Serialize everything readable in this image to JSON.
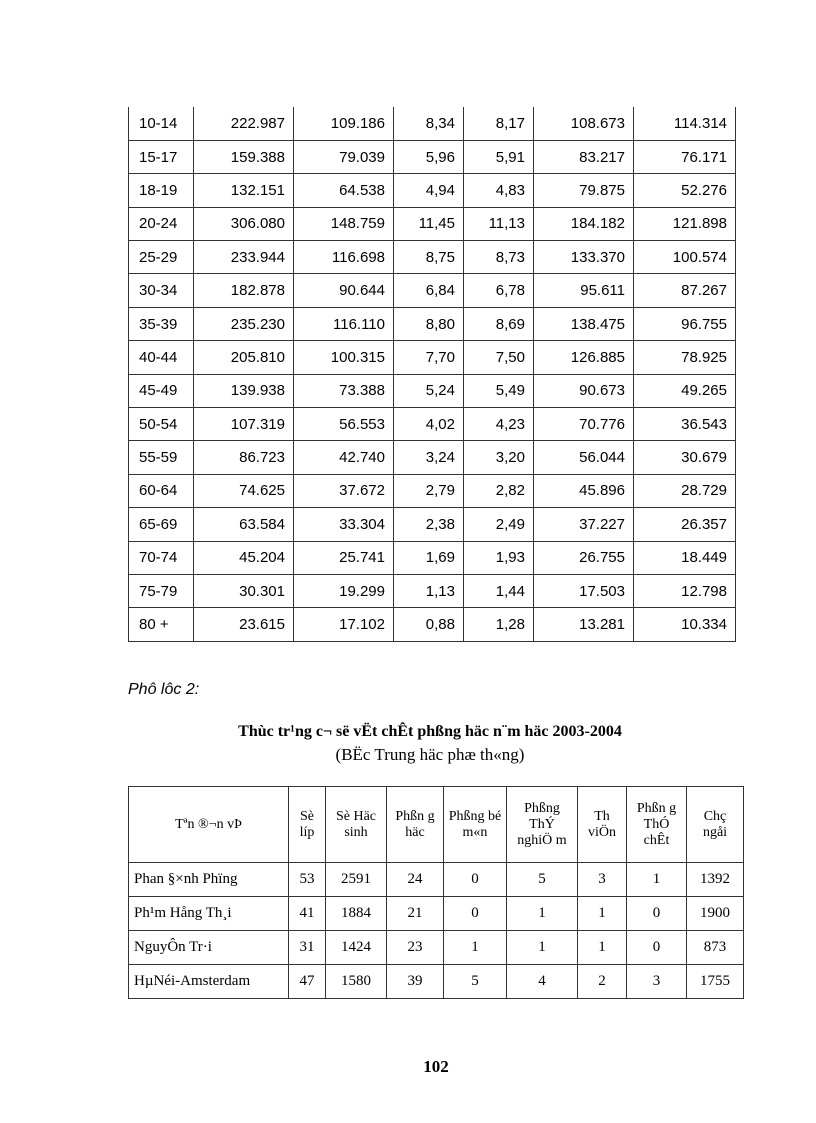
{
  "table1": {
    "rows": [
      [
        "10-14",
        "222.987",
        "109.186",
        "8,34",
        "8,17",
        "108.673",
        "114.314"
      ],
      [
        "15-17",
        "159.388",
        "79.039",
        "5,96",
        "5,91",
        "83.217",
        "76.171"
      ],
      [
        "18-19",
        "132.151",
        "64.538",
        "4,94",
        "4,83",
        "79.875",
        "52.276"
      ],
      [
        "20-24",
        "306.080",
        "148.759",
        "11,45",
        "11,13",
        "184.182",
        "121.898"
      ],
      [
        "25-29",
        "233.944",
        "116.698",
        "8,75",
        "8,73",
        "133.370",
        "100.574"
      ],
      [
        "30-34",
        "182.878",
        "90.644",
        "6,84",
        "6,78",
        "95.611",
        "87.267"
      ],
      [
        "35-39",
        "235.230",
        "116.110",
        "8,80",
        "8,69",
        "138.475",
        "96.755"
      ],
      [
        "40-44",
        "205.810",
        "100.315",
        "7,70",
        "7,50",
        "126.885",
        "78.925"
      ],
      [
        "45-49",
        "139.938",
        "73.388",
        "5,24",
        "5,49",
        "90.673",
        "49.265"
      ],
      [
        "50-54",
        "107.319",
        "56.553",
        "4,02",
        "4,23",
        "70.776",
        "36.543"
      ],
      [
        "55-59",
        "86.723",
        "42.740",
        "3,24",
        "3,20",
        "56.044",
        "30.679"
      ],
      [
        "60-64",
        "74.625",
        "37.672",
        "2,79",
        "2,82",
        "45.896",
        "28.729"
      ],
      [
        "65-69",
        "63.584",
        "33.304",
        "2,38",
        "2,49",
        "37.227",
        "26.357"
      ],
      [
        "70-74",
        "45.204",
        "25.741",
        "1,69",
        "1,93",
        "26.755",
        "18.449"
      ],
      [
        "75-79",
        "30.301",
        "19.299",
        "1,13",
        "1,44",
        "17.503",
        "12.798"
      ],
      [
        "80 +",
        "23.615",
        "17.102",
        "0,88",
        "1,28",
        "13.281",
        "10.334"
      ]
    ]
  },
  "appendix_label": "Phô lôc 2:",
  "table2": {
    "title": "Thùc tr¹ng c¬ së vËt chÊt phßng häc n¨m häc 2003-2004",
    "subtitle": "(BËc Trung häc phæ th«ng)",
    "headers": [
      "Tªn ®¬n vÞ",
      "Sè líp",
      "Sè Häc sinh",
      "Phßn g häc",
      "Phßng bé m«n",
      "Phßng ThÝ nghiÖ m",
      "Th viÖn",
      "Phßn g ThÓ chÊt",
      "Chç ngåi"
    ],
    "rows": [
      [
        "Phan §×nh Phïng",
        "53",
        "2591",
        "24",
        "0",
        "5",
        "3",
        "1",
        "1392"
      ],
      [
        "Ph¹m Hång Th¸i",
        "41",
        "1884",
        "21",
        "0",
        "1",
        "1",
        "0",
        "1900"
      ],
      [
        "NguyÔn Tr·i",
        "31",
        "1424",
        "23",
        "1",
        "1",
        "1",
        "0",
        "873"
      ],
      [
        "HµNéi-Amsterdam",
        "47",
        "1580",
        "39",
        "5",
        "4",
        "2",
        "3",
        "1755"
      ]
    ]
  },
  "page_number": "102"
}
